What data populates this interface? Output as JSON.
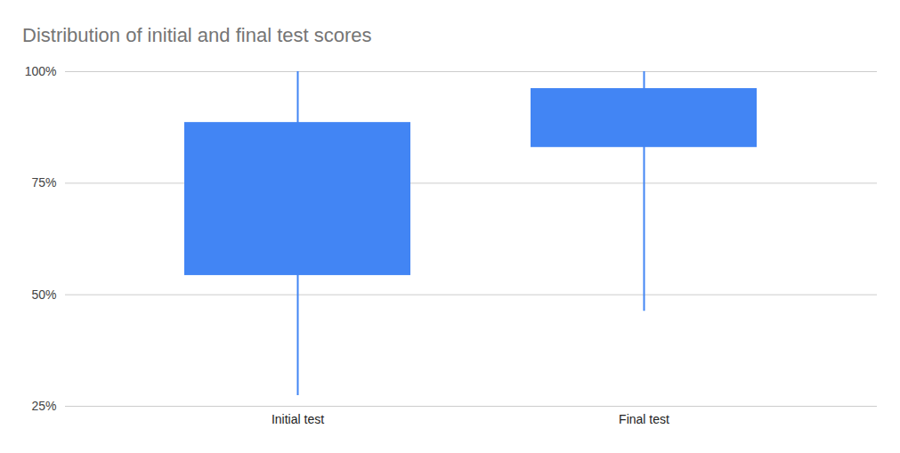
{
  "chart_data": {
    "type": "box",
    "title": "Distribution of initial and final test scores",
    "categories": [
      "Initial test",
      "Final test"
    ],
    "min": [
      27.4,
      46.3
    ],
    "q1": [
      54.3,
      83
    ],
    "q3": [
      88.6,
      96.2
    ],
    "max": [
      100,
      100
    ],
    "color": "#4285f4",
    "ylim": [
      25,
      100
    ],
    "yticks": [
      {
        "value": 25,
        "label": "25%"
      },
      {
        "value": 50,
        "label": "50%"
      },
      {
        "value": 75,
        "label": "75%"
      },
      {
        "value": 100,
        "label": "100%"
      }
    ],
    "grid": true
  }
}
